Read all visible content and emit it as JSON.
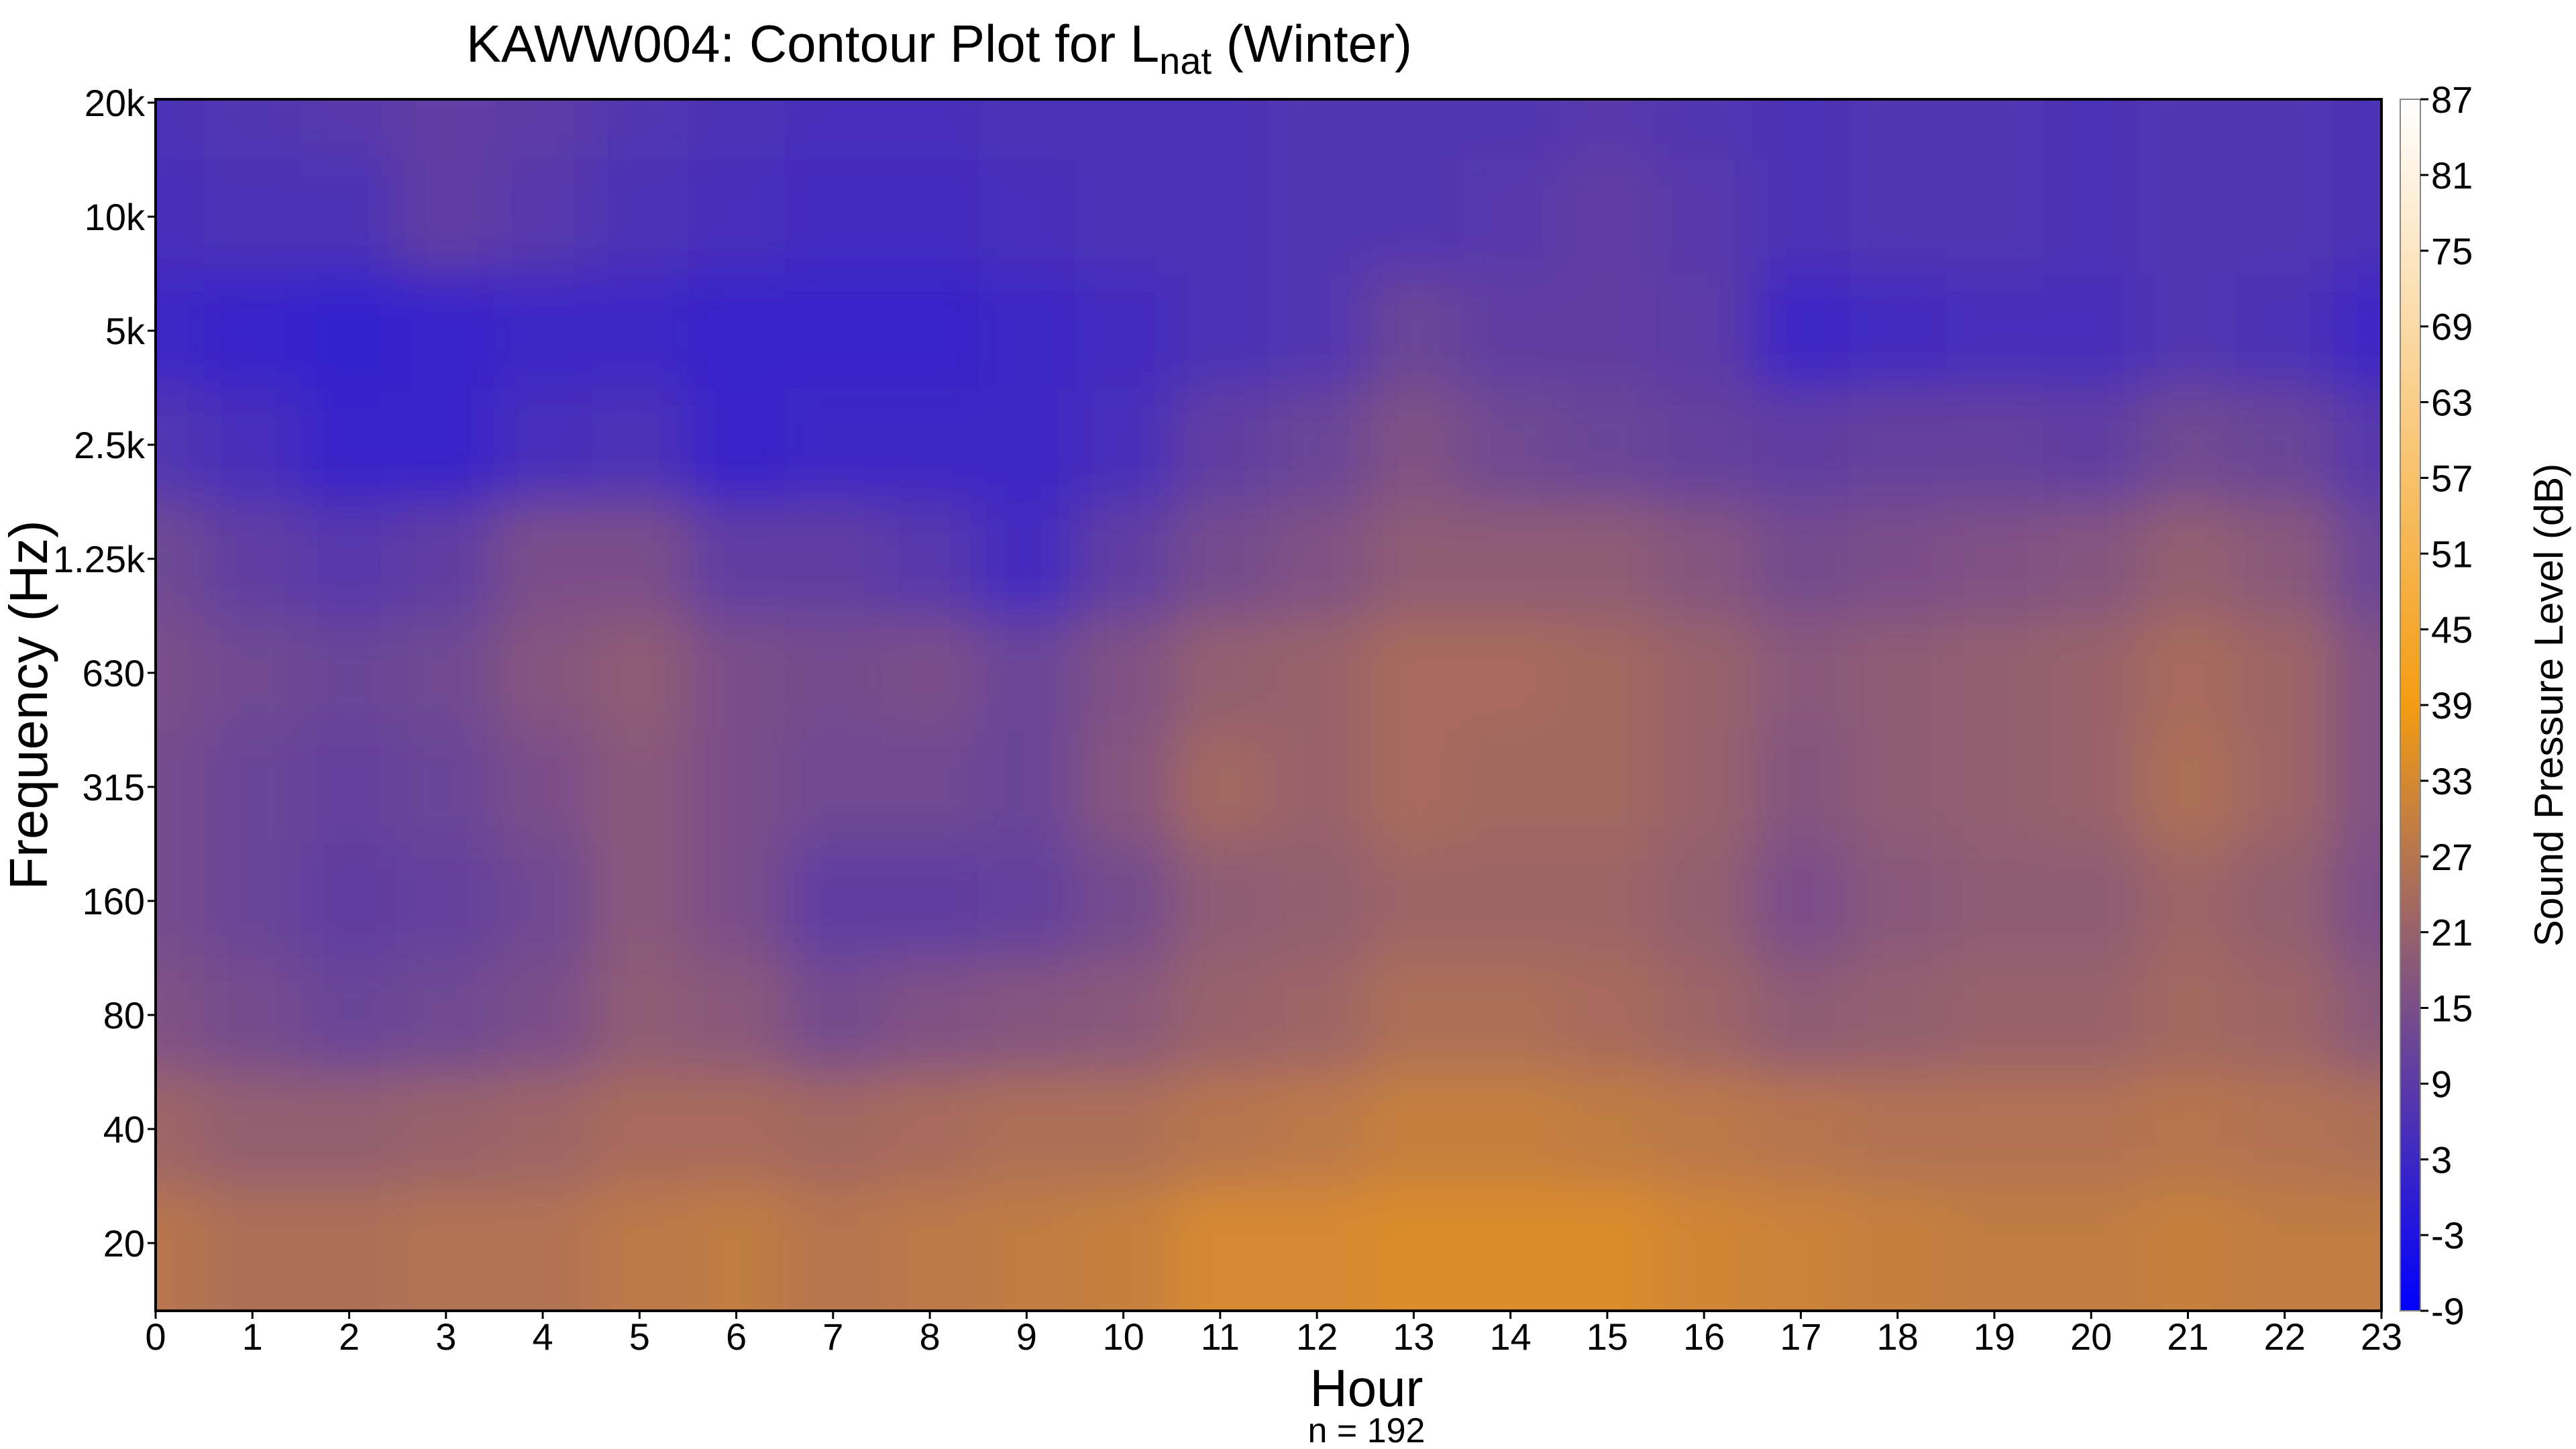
{
  "chart_data": {
    "type": "heatmap",
    "title": {
      "main": "KAWW004: Contour Plot for L",
      "subscript": "nat",
      "suffix": " (Winter)"
    },
    "xlabel": "Hour",
    "note": "n = 192",
    "ylabel": "Frequency (Hz)",
    "colorbar_label": "Sound Pressure Level (dB)",
    "x": [
      0,
      1,
      2,
      3,
      4,
      5,
      6,
      7,
      8,
      9,
      10,
      11,
      12,
      13,
      14,
      15,
      16,
      17,
      18,
      19,
      20,
      21,
      22,
      23
    ],
    "x_ticks": [
      "0",
      "1",
      "2",
      "3",
      "4",
      "5",
      "6",
      "7",
      "8",
      "9",
      "10",
      "11",
      "12",
      "13",
      "14",
      "15",
      "16",
      "17",
      "18",
      "19",
      "20",
      "21",
      "22",
      "23"
    ],
    "y_ticks": [
      "20",
      "40",
      "80",
      "160",
      "315",
      "630",
      "1.25k",
      "2.5k",
      "5k",
      "10k",
      "20k"
    ],
    "y_scale": "log",
    "colorbar_ticks": [
      "-9",
      "-3",
      "3",
      "9",
      "15",
      "21",
      "27",
      "33",
      "39",
      "45",
      "51",
      "57",
      "63",
      "69",
      "75",
      "81",
      "87"
    ],
    "zlim": [
      -9,
      87
    ],
    "colormap": [
      "#0000ff",
      "#f39c12",
      "#ffffff"
    ],
    "z": [
      [
        27,
        25,
        25,
        26,
        26,
        28,
        29,
        27,
        28,
        29,
        30,
        33,
        33,
        34,
        34,
        34,
        32,
        31,
        30,
        29,
        29,
        30,
        29,
        29
      ],
      [
        22,
        20,
        20,
        21,
        22,
        24,
        24,
        23,
        24,
        25,
        25,
        27,
        28,
        30,
        30,
        29,
        28,
        27,
        26,
        26,
        26,
        27,
        26,
        25
      ],
      [
        16,
        14,
        12,
        13,
        15,
        19,
        18,
        14,
        16,
        17,
        18,
        21,
        22,
        25,
        25,
        24,
        22,
        19,
        20,
        21,
        21,
        23,
        22,
        18
      ],
      [
        14,
        12,
        10,
        11,
        13,
        18,
        15,
        10,
        10,
        11,
        14,
        19,
        20,
        22,
        22,
        22,
        20,
        15,
        18,
        19,
        19,
        22,
        20,
        15
      ],
      [
        14,
        12,
        11,
        12,
        15,
        18,
        15,
        13,
        13,
        12,
        17,
        23,
        21,
        24,
        23,
        23,
        21,
        17,
        19,
        20,
        21,
        25,
        22,
        16
      ],
      [
        15,
        13,
        12,
        13,
        17,
        19,
        15,
        14,
        15,
        12,
        16,
        20,
        21,
        24,
        24,
        23,
        21,
        18,
        19,
        20,
        21,
        24,
        22,
        16
      ],
      [
        13,
        10,
        8,
        10,
        15,
        15,
        10,
        10,
        8,
        4,
        10,
        14,
        16,
        19,
        19,
        19,
        17,
        14,
        15,
        16,
        17,
        20,
        18,
        12
      ],
      [
        7,
        5,
        2,
        2,
        5,
        6,
        2,
        3,
        3,
        3,
        5,
        10,
        12,
        16,
        13,
        12,
        11,
        10,
        11,
        11,
        10,
        13,
        12,
        8
      ],
      [
        3,
        2,
        1,
        2,
        3,
        3,
        2,
        2,
        2,
        3,
        4,
        6,
        7,
        12,
        10,
        10,
        9,
        3,
        4,
        5,
        5,
        7,
        6,
        3
      ],
      [
        5,
        6,
        6,
        10,
        8,
        6,
        5,
        4,
        4,
        5,
        6,
        6,
        7,
        7,
        8,
        10,
        8,
        6,
        7,
        7,
        6,
        7,
        7,
        6
      ],
      [
        6,
        7,
        8,
        10,
        9,
        7,
        6,
        5,
        5,
        6,
        6,
        6,
        7,
        7,
        7,
        8,
        7,
        6,
        7,
        7,
        6,
        7,
        7,
        6
      ]
    ]
  }
}
